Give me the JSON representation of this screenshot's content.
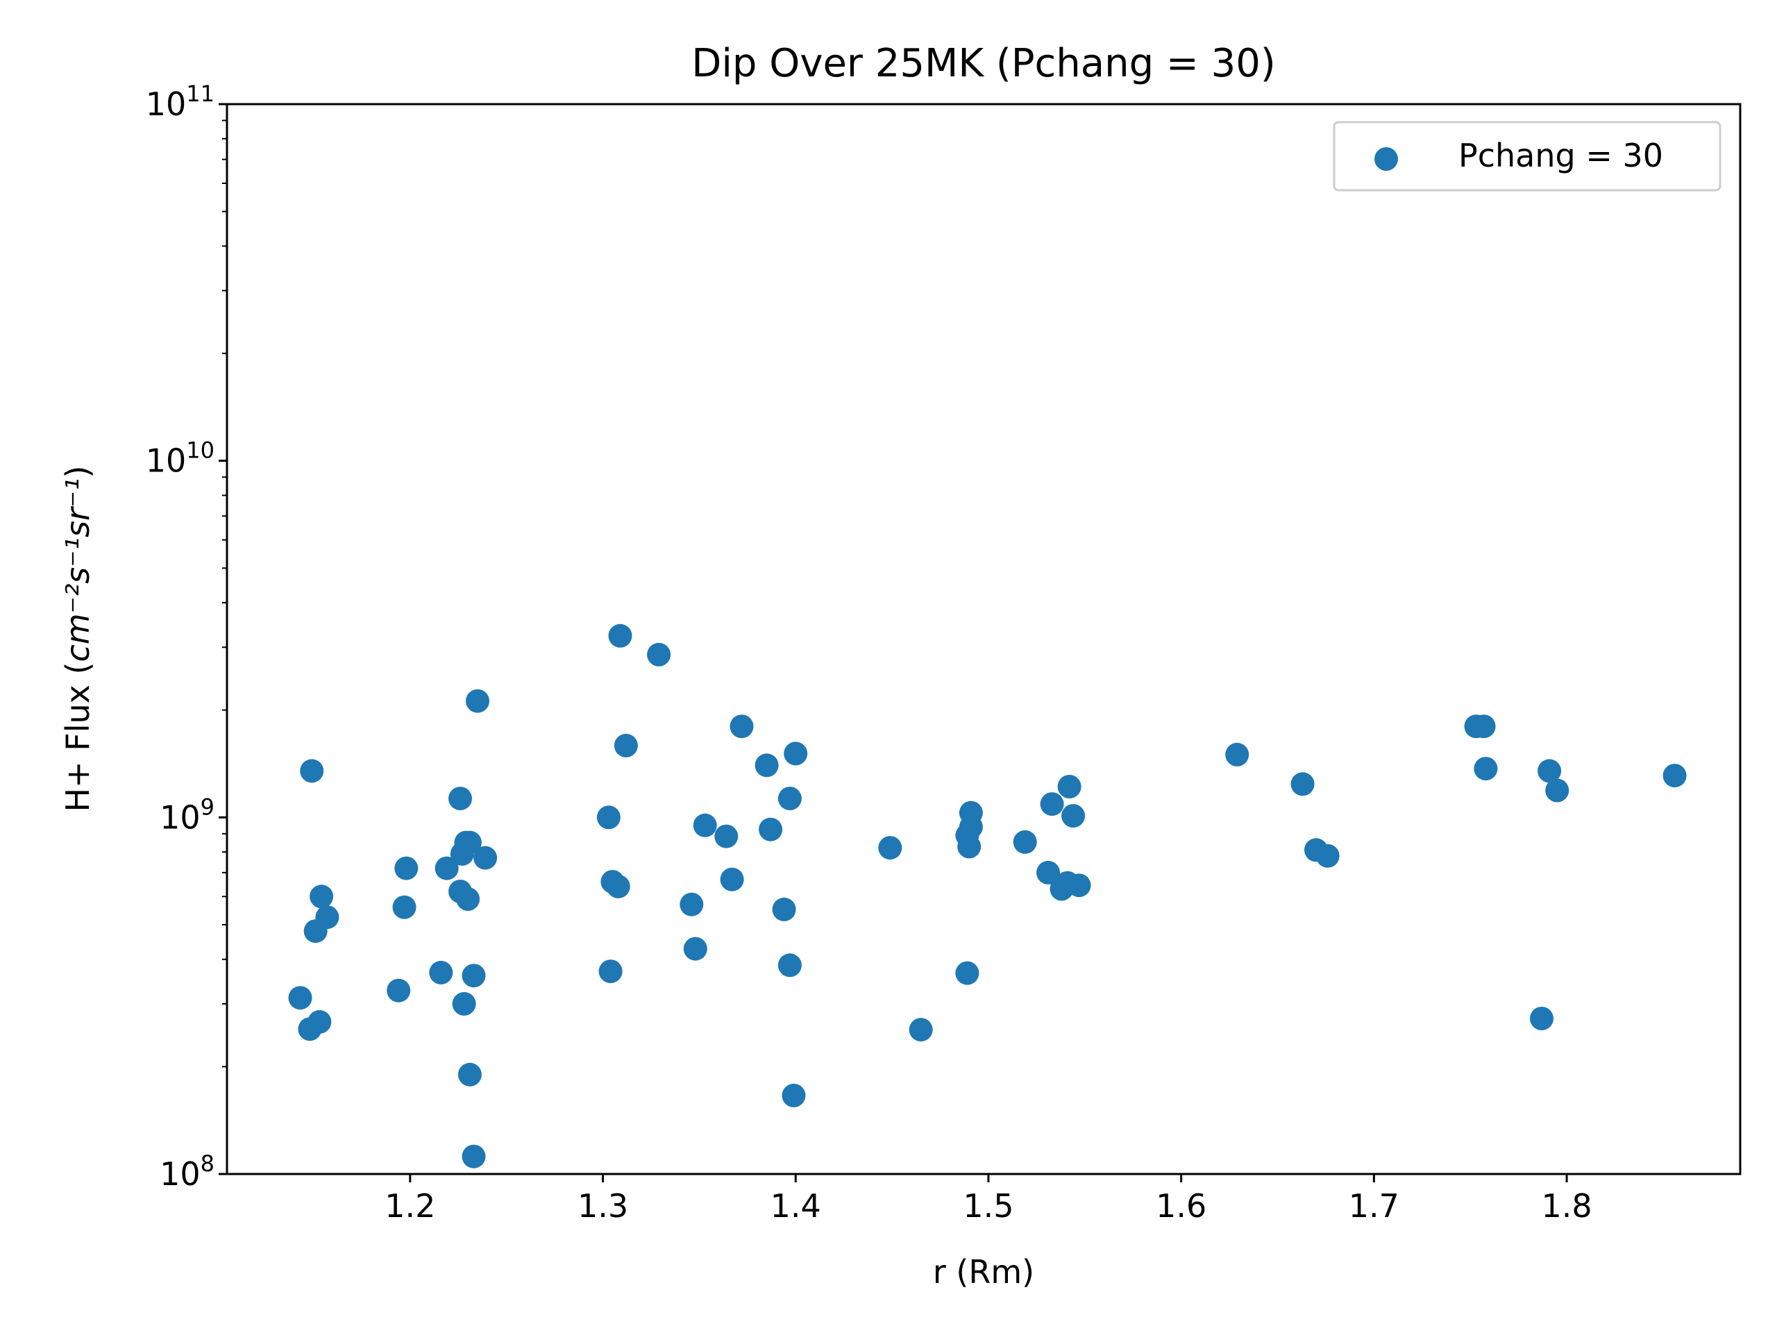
{
  "chart_data": {
    "type": "scatter",
    "title": "Dip Over 25MK  (Pchang = 30)",
    "xlabel": "r (Rm)",
    "ylabel_main": "H+ Flux (",
    "ylabel_unit": "cm⁻²s⁻¹sr⁻¹",
    "ylabel_close": ")",
    "xlim": [
      1.105,
      1.89
    ],
    "ylim": [
      100000000,
      100000000000
    ],
    "yscale": "log",
    "grid": false,
    "legend_position": "top-right",
    "x_ticks": [
      {
        "value": 1.2,
        "label": "1.2"
      },
      {
        "value": 1.3,
        "label": "1.3"
      },
      {
        "value": 1.4,
        "label": "1.4"
      },
      {
        "value": 1.5,
        "label": "1.5"
      },
      {
        "value": 1.6,
        "label": "1.6"
      },
      {
        "value": 1.7,
        "label": "1.7"
      },
      {
        "value": 1.8,
        "label": "1.8"
      }
    ],
    "y_ticks": [
      {
        "value": 100000000,
        "base": "10",
        "exp": "8"
      },
      {
        "value": 1000000000,
        "base": "10",
        "exp": "9"
      },
      {
        "value": 10000000000,
        "base": "10",
        "exp": "10"
      },
      {
        "value": 100000000000,
        "base": "10",
        "exp": "11"
      }
    ],
    "series": [
      {
        "name": "Pchang = 30",
        "color": "#1f77b4",
        "x": [
          1.143,
          1.148,
          1.149,
          1.151,
          1.153,
          1.154,
          1.157,
          1.194,
          1.197,
          1.198,
          1.216,
          1.219,
          1.226,
          1.226,
          1.227,
          1.228,
          1.229,
          1.23,
          1.231,
          1.231,
          1.233,
          1.233,
          1.235,
          1.239,
          1.303,
          1.304,
          1.305,
          1.308,
          1.309,
          1.312,
          1.329,
          1.346,
          1.348,
          1.353,
          1.364,
          1.367,
          1.372,
          1.385,
          1.387,
          1.394,
          1.397,
          1.397,
          1.399,
          1.4,
          1.449,
          1.465,
          1.489,
          1.489,
          1.49,
          1.491,
          1.491,
          1.519,
          1.531,
          1.533,
          1.538,
          1.541,
          1.542,
          1.544,
          1.547,
          1.629,
          1.663,
          1.67,
          1.676,
          1.753,
          1.757,
          1.758,
          1.787,
          1.791,
          1.795,
          1.856
        ],
        "y": [
          312000000,
          255000000,
          1350000000,
          480000000,
          267000000,
          600000000,
          525000000,
          327000000,
          560000000,
          720000000,
          367000000,
          720000000,
          1130000000,
          620000000,
          790000000,
          300000000,
          850000000,
          590000000,
          190000000,
          850000000,
          360000000,
          112000000,
          2120000000,
          770000000,
          1000000000,
          370000000,
          660000000,
          640000000,
          3230000000,
          1590000000,
          2860000000,
          570000000,
          428000000,
          950000000,
          885000000,
          670000000,
          1800000000,
          1400000000,
          925000000,
          552000000,
          385000000,
          1130000000,
          166000000,
          1510000000,
          822000000,
          254000000,
          890000000,
          366000000,
          828000000,
          940000000,
          1030000000,
          853000000,
          700000000,
          1090000000,
          630000000,
          655000000,
          1220000000,
          1010000000,
          645000000,
          1500000000,
          1240000000,
          810000000,
          780000000,
          1800000000,
          1800000000,
          1370000000,
          273000000,
          1350000000,
          1190000000,
          1310000000
        ]
      }
    ]
  }
}
